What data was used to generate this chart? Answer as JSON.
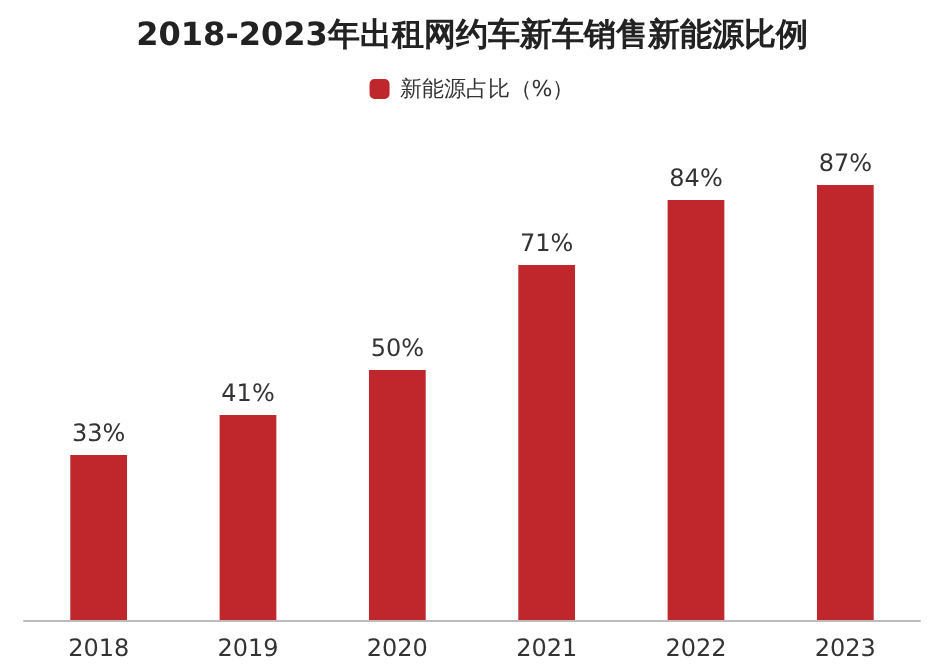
{
  "chart_data": {
    "type": "bar",
    "title": "2018-2023年出租网约车新车销售新能源比例",
    "categories": [
      "2018",
      "2019",
      "2020",
      "2021",
      "2022",
      "2023"
    ],
    "series": [
      {
        "name": "新能源占比（%）",
        "color": "#c0272d",
        "values": [
          33,
          41,
          50,
          71,
          84,
          87
        ],
        "value_labels": [
          "33%",
          "41%",
          "50%",
          "71%",
          "84%",
          "87%"
        ]
      }
    ],
    "legend": "top"
  }
}
